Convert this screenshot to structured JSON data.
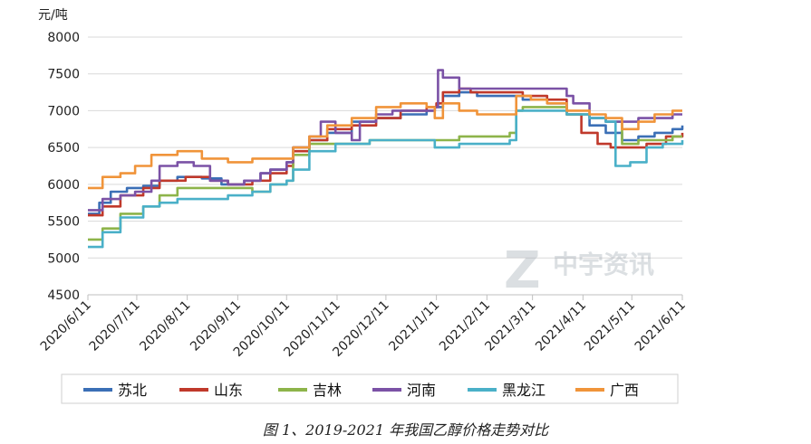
{
  "chart_data": {
    "type": "line",
    "ylabel": "元/吨",
    "ylim": [
      4500,
      8000
    ],
    "yticks": [
      4500,
      5000,
      5500,
      6000,
      6500,
      7000,
      7500,
      8000
    ],
    "xlim": [
      "2020-06-11",
      "2021-06-11"
    ],
    "xtick_labels": [
      "2020/6/11",
      "2020/7/11",
      "2020/8/11",
      "2020/9/11",
      "2020/10/11",
      "2020/11/11",
      "2020/12/11",
      "2021/1/11",
      "2021/2/11",
      "2021/3/11",
      "2021/4/11",
      "2021/5/11",
      "2021/6/11"
    ],
    "xtick_dates": [
      "2020-06-11",
      "2020-07-11",
      "2020-08-11",
      "2020-09-11",
      "2020-10-11",
      "2020-11-11",
      "2020-12-11",
      "2021-01-11",
      "2021-02-11",
      "2021-03-11",
      "2021-04-11",
      "2021-05-11",
      "2021-06-11"
    ],
    "grid": "horizontal",
    "legend_position": "bottom",
    "watermark": "中宇资讯",
    "series": [
      {
        "name": "苏北",
        "color": "#3b6fb6",
        "points": [
          [
            "2020-06-11",
            5600
          ],
          [
            "2020-06-18",
            5750
          ],
          [
            "2020-06-25",
            5900
          ],
          [
            "2020-07-05",
            5950
          ],
          [
            "2020-07-15",
            5980
          ],
          [
            "2020-07-25",
            6050
          ],
          [
            "2020-08-05",
            6100
          ],
          [
            "2020-08-20",
            6080
          ],
          [
            "2020-09-01",
            6000
          ],
          [
            "2020-09-15",
            6050
          ],
          [
            "2020-09-25",
            6150
          ],
          [
            "2020-10-01",
            6200
          ],
          [
            "2020-10-11",
            6300
          ],
          [
            "2020-10-15",
            6500
          ],
          [
            "2020-10-25",
            6600
          ],
          [
            "2020-11-05",
            6700
          ],
          [
            "2020-11-20",
            6850
          ],
          [
            "2020-12-05",
            6900
          ],
          [
            "2020-12-20",
            6950
          ],
          [
            "2021-01-05",
            7000
          ],
          [
            "2021-01-10",
            7050
          ],
          [
            "2021-01-15",
            7200
          ],
          [
            "2021-01-25",
            7250
          ],
          [
            "2021-02-05",
            7200
          ],
          [
            "2021-02-20",
            7200
          ],
          [
            "2021-03-05",
            7150
          ],
          [
            "2021-03-20",
            7100
          ],
          [
            "2021-04-01",
            6950
          ],
          [
            "2021-04-15",
            6800
          ],
          [
            "2021-04-25",
            6700
          ],
          [
            "2021-05-05",
            6600
          ],
          [
            "2021-05-15",
            6650
          ],
          [
            "2021-05-25",
            6700
          ],
          [
            "2021-06-05",
            6750
          ],
          [
            "2021-06-11",
            6800
          ]
        ]
      },
      {
        "name": "山东",
        "color": "#c0392b",
        "points": [
          [
            "2020-06-11",
            5580
          ],
          [
            "2020-06-20",
            5700
          ],
          [
            "2020-07-01",
            5850
          ],
          [
            "2020-07-15",
            5950
          ],
          [
            "2020-07-25",
            6050
          ],
          [
            "2020-08-10",
            6100
          ],
          [
            "2020-08-25",
            6050
          ],
          [
            "2020-09-05",
            6000
          ],
          [
            "2020-09-20",
            6050
          ],
          [
            "2020-10-01",
            6150
          ],
          [
            "2020-10-11",
            6250
          ],
          [
            "2020-10-15",
            6450
          ],
          [
            "2020-10-25",
            6600
          ],
          [
            "2020-11-05",
            6750
          ],
          [
            "2020-11-20",
            6800
          ],
          [
            "2020-12-05",
            6900
          ],
          [
            "2020-12-20",
            7000
          ],
          [
            "2021-01-05",
            7050
          ],
          [
            "2021-01-11",
            7100
          ],
          [
            "2021-01-15",
            7250
          ],
          [
            "2021-01-25",
            7300
          ],
          [
            "2021-02-01",
            7250
          ],
          [
            "2021-02-20",
            7250
          ],
          [
            "2021-03-05",
            7200
          ],
          [
            "2021-03-20",
            7150
          ],
          [
            "2021-04-01",
            6950
          ],
          [
            "2021-04-10",
            6700
          ],
          [
            "2021-04-20",
            6550
          ],
          [
            "2021-04-28",
            6500
          ],
          [
            "2021-05-10",
            6500
          ],
          [
            "2021-05-20",
            6550
          ],
          [
            "2021-06-01",
            6650
          ],
          [
            "2021-06-11",
            6700
          ]
        ]
      },
      {
        "name": "吉林",
        "color": "#8db44a",
        "points": [
          [
            "2020-06-11",
            5250
          ],
          [
            "2020-06-20",
            5400
          ],
          [
            "2020-07-01",
            5600
          ],
          [
            "2020-07-15",
            5700
          ],
          [
            "2020-07-25",
            5850
          ],
          [
            "2020-08-05",
            5950
          ],
          [
            "2020-08-20",
            5950
          ],
          [
            "2020-09-05",
            5950
          ],
          [
            "2020-09-20",
            5900
          ],
          [
            "2020-10-01",
            6000
          ],
          [
            "2020-10-11",
            6050
          ],
          [
            "2020-10-15",
            6400
          ],
          [
            "2020-10-25",
            6550
          ],
          [
            "2020-11-10",
            6550
          ],
          [
            "2020-11-25",
            6550
          ],
          [
            "2020-12-01",
            6600
          ],
          [
            "2020-12-20",
            6600
          ],
          [
            "2021-01-05",
            6600
          ],
          [
            "2021-01-15",
            6600
          ],
          [
            "2021-01-25",
            6650
          ],
          [
            "2021-02-15",
            6650
          ],
          [
            "2021-02-25",
            6700
          ],
          [
            "2021-03-01",
            7000
          ],
          [
            "2021-03-05",
            7050
          ],
          [
            "2021-03-20",
            7050
          ],
          [
            "2021-04-01",
            6950
          ],
          [
            "2021-04-15",
            6900
          ],
          [
            "2021-04-25",
            6850
          ],
          [
            "2021-05-05",
            6550
          ],
          [
            "2021-05-15",
            6600
          ],
          [
            "2021-05-25",
            6600
          ],
          [
            "2021-06-05",
            6650
          ],
          [
            "2021-06-11",
            6650
          ]
        ]
      },
      {
        "name": "河南",
        "color": "#7b52a6",
        "points": [
          [
            "2020-06-11",
            5650
          ],
          [
            "2020-06-20",
            5800
          ],
          [
            "2020-07-01",
            5850
          ],
          [
            "2020-07-10",
            5900
          ],
          [
            "2020-07-20",
            6050
          ],
          [
            "2020-07-25",
            6250
          ],
          [
            "2020-08-05",
            6300
          ],
          [
            "2020-08-15",
            6250
          ],
          [
            "2020-08-25",
            6050
          ],
          [
            "2020-09-05",
            6000
          ],
          [
            "2020-09-15",
            6050
          ],
          [
            "2020-09-25",
            6150
          ],
          [
            "2020-10-01",
            6200
          ],
          [
            "2020-10-11",
            6300
          ],
          [
            "2020-10-15",
            6500
          ],
          [
            "2020-10-25",
            6650
          ],
          [
            "2020-11-01",
            6850
          ],
          [
            "2020-11-10",
            6700
          ],
          [
            "2020-11-20",
            6600
          ],
          [
            "2020-11-25",
            6850
          ],
          [
            "2020-12-05",
            6950
          ],
          [
            "2020-12-15",
            7000
          ],
          [
            "2021-01-05",
            7000
          ],
          [
            "2021-01-10",
            7050
          ],
          [
            "2021-01-12",
            7550
          ],
          [
            "2021-01-15",
            7450
          ],
          [
            "2021-01-25",
            7300
          ],
          [
            "2021-02-05",
            7300
          ],
          [
            "2021-02-20",
            7300
          ],
          [
            "2021-03-05",
            7300
          ],
          [
            "2021-03-20",
            7300
          ],
          [
            "2021-04-01",
            7200
          ],
          [
            "2021-04-05",
            7100
          ],
          [
            "2021-04-15",
            6900
          ],
          [
            "2021-04-25",
            6850
          ],
          [
            "2021-05-05",
            6850
          ],
          [
            "2021-05-15",
            6900
          ],
          [
            "2021-05-25",
            6900
          ],
          [
            "2021-06-05",
            6950
          ],
          [
            "2021-06-11",
            6950
          ]
        ]
      },
      {
        "name": "黑龙江",
        "color": "#4ab0c8",
        "points": [
          [
            "2020-06-11",
            5150
          ],
          [
            "2020-06-20",
            5350
          ],
          [
            "2020-07-01",
            5550
          ],
          [
            "2020-07-15",
            5700
          ],
          [
            "2020-07-25",
            5750
          ],
          [
            "2020-08-05",
            5800
          ],
          [
            "2020-08-20",
            5800
          ],
          [
            "2020-09-05",
            5850
          ],
          [
            "2020-09-20",
            5900
          ],
          [
            "2020-10-01",
            6000
          ],
          [
            "2020-10-11",
            6050
          ],
          [
            "2020-10-15",
            6200
          ],
          [
            "2020-10-25",
            6450
          ],
          [
            "2020-11-10",
            6550
          ],
          [
            "2020-11-25",
            6550
          ],
          [
            "2020-12-01",
            6600
          ],
          [
            "2020-12-20",
            6600
          ],
          [
            "2021-01-05",
            6600
          ],
          [
            "2021-01-10",
            6500
          ],
          [
            "2021-01-25",
            6550
          ],
          [
            "2021-02-15",
            6550
          ],
          [
            "2021-02-25",
            6600
          ],
          [
            "2021-03-01",
            7000
          ],
          [
            "2021-03-20",
            7000
          ],
          [
            "2021-04-01",
            6950
          ],
          [
            "2021-04-15",
            6900
          ],
          [
            "2021-04-25",
            6850
          ],
          [
            "2021-05-01",
            6250
          ],
          [
            "2021-05-10",
            6300
          ],
          [
            "2021-05-20",
            6500
          ],
          [
            "2021-05-30",
            6550
          ],
          [
            "2021-06-11",
            6600
          ]
        ]
      },
      {
        "name": "广西",
        "color": "#f0943a",
        "points": [
          [
            "2020-06-11",
            5950
          ],
          [
            "2020-06-20",
            6100
          ],
          [
            "2020-07-01",
            6150
          ],
          [
            "2020-07-10",
            6250
          ],
          [
            "2020-07-20",
            6400
          ],
          [
            "2020-08-05",
            6450
          ],
          [
            "2020-08-20",
            6350
          ],
          [
            "2020-09-05",
            6300
          ],
          [
            "2020-09-20",
            6350
          ],
          [
            "2020-10-01",
            6350
          ],
          [
            "2020-10-11",
            6350
          ],
          [
            "2020-10-15",
            6500
          ],
          [
            "2020-10-25",
            6650
          ],
          [
            "2020-11-05",
            6800
          ],
          [
            "2020-11-20",
            6900
          ],
          [
            "2020-12-05",
            7050
          ],
          [
            "2020-12-20",
            7100
          ],
          [
            "2021-01-05",
            7050
          ],
          [
            "2021-01-10",
            6900
          ],
          [
            "2021-01-15",
            7100
          ],
          [
            "2021-01-25",
            7000
          ],
          [
            "2021-02-05",
            6950
          ],
          [
            "2021-02-20",
            6950
          ],
          [
            "2021-03-01",
            7200
          ],
          [
            "2021-03-10",
            7150
          ],
          [
            "2021-03-20",
            7100
          ],
          [
            "2021-04-01",
            7000
          ],
          [
            "2021-04-15",
            6950
          ],
          [
            "2021-04-25",
            6900
          ],
          [
            "2021-05-05",
            6750
          ],
          [
            "2021-05-15",
            6850
          ],
          [
            "2021-05-25",
            6950
          ],
          [
            "2021-06-05",
            7000
          ],
          [
            "2021-06-11",
            7000
          ]
        ]
      }
    ]
  },
  "caption": "图 1、2019-2021 年我国乙醇价格走势对比"
}
